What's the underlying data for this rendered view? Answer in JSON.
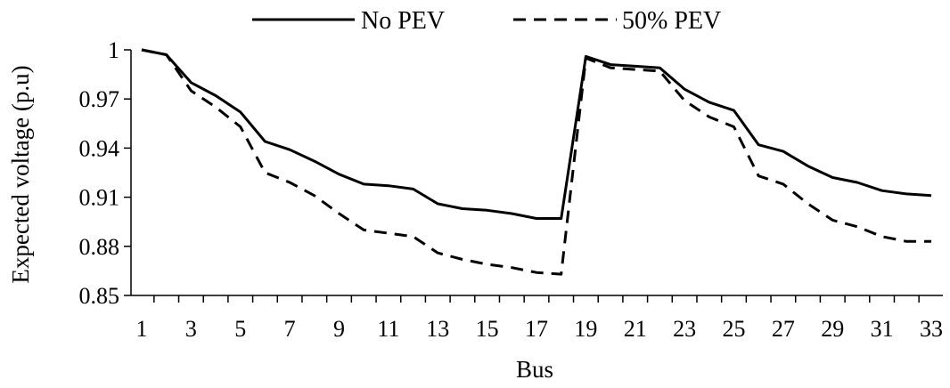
{
  "chart_data": {
    "type": "line",
    "xlabel": "Bus",
    "ylabel": "Expected voltage (p.u)",
    "x": [
      1,
      2,
      3,
      4,
      5,
      6,
      7,
      8,
      9,
      10,
      11,
      12,
      13,
      14,
      15,
      16,
      17,
      18,
      19,
      20,
      21,
      22,
      23,
      24,
      25,
      26,
      27,
      28,
      29,
      30,
      31,
      32,
      33
    ],
    "x_tick_labels": [
      "1",
      "3",
      "5",
      "7",
      "9",
      "11",
      "13",
      "15",
      "17",
      "19",
      "21",
      "23",
      "25",
      "27",
      "29",
      "31",
      "33"
    ],
    "y_tick_labels": [
      "0.85",
      "0.88",
      "0.91",
      "0.94",
      "0.97",
      "1"
    ],
    "ylim": [
      0.85,
      1.0
    ],
    "grid": false,
    "legend_position": "top",
    "series": [
      {
        "name": "No PEV",
        "style": "solid",
        "color": "#000000",
        "values": [
          1.0,
          0.997,
          0.98,
          0.972,
          0.962,
          0.944,
          0.939,
          0.932,
          0.924,
          0.918,
          0.917,
          0.915,
          0.906,
          0.903,
          0.902,
          0.9,
          0.897,
          0.897,
          0.996,
          0.991,
          0.99,
          0.989,
          0.976,
          0.968,
          0.963,
          0.942,
          0.938,
          0.929,
          0.922,
          0.919,
          0.914,
          0.912,
          0.911
        ]
      },
      {
        "name": "50% PEV",
        "style": "dashed",
        "color": "#000000",
        "values": [
          1.0,
          0.997,
          0.975,
          0.965,
          0.953,
          0.925,
          0.919,
          0.911,
          0.9,
          0.89,
          0.888,
          0.886,
          0.876,
          0.872,
          0.869,
          0.867,
          0.864,
          0.863,
          0.995,
          0.989,
          0.988,
          0.987,
          0.969,
          0.959,
          0.953,
          0.923,
          0.918,
          0.906,
          0.896,
          0.892,
          0.886,
          0.883,
          0.883
        ]
      }
    ]
  }
}
